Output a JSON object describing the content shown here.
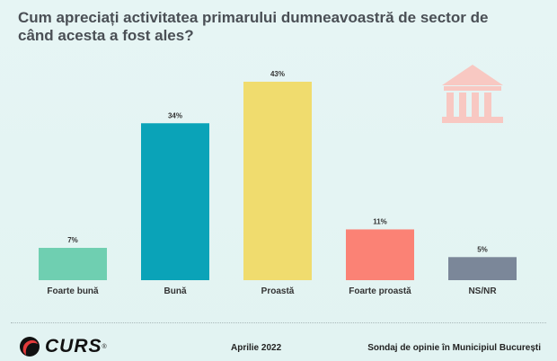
{
  "chart_data": {
    "type": "bar",
    "title": "Cum apreciați activitatea primarului dumneavoastră de sector de când acesta a fost ales?",
    "categories": [
      "Foarte bună",
      "Bună",
      "Proastă",
      "Foarte proastă",
      "NS/NR"
    ],
    "values": [
      7,
      34,
      43,
      11,
      5
    ],
    "data_labels": [
      "7%",
      "34%",
      "43%",
      "11%",
      "5%"
    ],
    "colors": [
      "#6fcfb1",
      "#0aa3b8",
      "#f0dc6e",
      "#fb8275",
      "#7b8799"
    ],
    "ylim": [
      0,
      43
    ],
    "xlabel": "",
    "ylabel": "",
    "grid": false
  },
  "decoration": {
    "icon": "bank-building-icon",
    "icon_color": "#f8c8c2"
  },
  "footer": {
    "logo": "CURS",
    "logo_mark": "®",
    "date": "Aprilie 2022",
    "source": "Sondaj de opinie în Municipiul București"
  }
}
